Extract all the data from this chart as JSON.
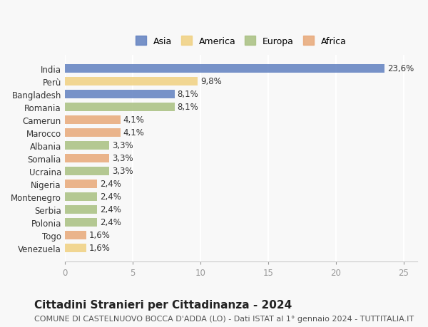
{
  "countries": [
    "India",
    "Perù",
    "Bangladesh",
    "Romania",
    "Camerun",
    "Marocco",
    "Albania",
    "Somalia",
    "Ucraina",
    "Nigeria",
    "Montenegro",
    "Serbia",
    "Polonia",
    "Togo",
    "Venezuela"
  ],
  "values": [
    23.6,
    9.8,
    8.1,
    8.1,
    4.1,
    4.1,
    3.3,
    3.3,
    3.3,
    2.4,
    2.4,
    2.4,
    2.4,
    1.6,
    1.6
  ],
  "labels": [
    "23,6%",
    "9,8%",
    "8,1%",
    "8,1%",
    "4,1%",
    "4,1%",
    "3,3%",
    "3,3%",
    "3,3%",
    "2,4%",
    "2,4%",
    "2,4%",
    "2,4%",
    "1,6%",
    "1,6%"
  ],
  "continents": [
    "Asia",
    "America",
    "Asia",
    "Europa",
    "Africa",
    "Africa",
    "Europa",
    "Africa",
    "Europa",
    "Africa",
    "Europa",
    "Europa",
    "Europa",
    "Africa",
    "America"
  ],
  "colors": {
    "Asia": "#6080c0",
    "America": "#f0d080",
    "Europa": "#a8c080",
    "Africa": "#e8a878"
  },
  "legend_order": [
    "Asia",
    "America",
    "Europa",
    "Africa"
  ],
  "title": "Cittadini Stranieri per Cittadinanza - 2024",
  "subtitle": "COMUNE DI CASTELNUOVO BOCCA D'ADDA (LO) - Dati ISTAT al 1° gennaio 2024 - TUTTITALIA.IT",
  "xlim": [
    0,
    26
  ],
  "xticks": [
    0,
    5,
    10,
    15,
    20,
    25
  ],
  "background_color": "#f8f8f8",
  "bar_height": 0.65,
  "label_fontsize": 8.5,
  "tick_fontsize": 8.5,
  "title_fontsize": 11,
  "subtitle_fontsize": 8
}
